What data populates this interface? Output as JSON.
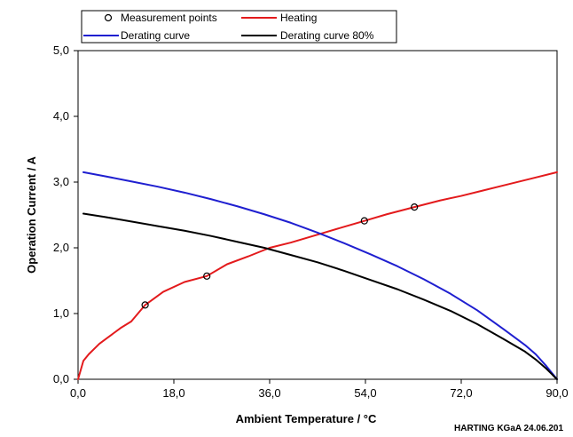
{
  "chart_data": {
    "type": "line",
    "title": "",
    "xlabel": "Ambient Temperature / °C",
    "ylabel": "Operation Current / A",
    "xlim": [
      0,
      90
    ],
    "ylim": [
      0,
      5
    ],
    "xticks": [
      0,
      18,
      36,
      54,
      72,
      90
    ],
    "xtick_labels": [
      "0,0",
      "18,0",
      "36,0",
      "54,0",
      "72,0",
      "90,0"
    ],
    "yticks": [
      0,
      1,
      2,
      3,
      4,
      5
    ],
    "ytick_labels": [
      "0,0",
      "1,0",
      "2,0",
      "3,0",
      "4,0",
      "5,0"
    ],
    "grid": false,
    "legend_position": "top",
    "legend": [
      {
        "label": "Measurement points",
        "marker": "circle",
        "color": "#000000"
      },
      {
        "label": "Heating",
        "marker": "line",
        "color": "#e31a1c"
      },
      {
        "label": "Derating curve",
        "marker": "line",
        "color": "#1f1fd0"
      },
      {
        "label": "Derating curve 80%",
        "marker": "line",
        "color": "#000000"
      }
    ],
    "series": [
      {
        "name": "Heating",
        "color": "#e31a1c",
        "x": [
          0,
          1,
          2,
          4,
          6,
          8,
          10,
          12.6,
          16,
          20,
          24.2,
          28,
          32,
          36,
          40,
          45,
          50,
          53.8,
          58,
          63.2,
          68,
          72,
          76,
          80,
          85,
          90
        ],
        "y": [
          0,
          0.28,
          0.38,
          0.54,
          0.66,
          0.78,
          0.88,
          1.13,
          1.33,
          1.48,
          1.57,
          1.75,
          1.87,
          2.0,
          2.08,
          2.2,
          2.32,
          2.41,
          2.51,
          2.62,
          2.72,
          2.79,
          2.87,
          2.95,
          3.05,
          3.15
        ]
      },
      {
        "name": "Derating curve",
        "color": "#1f1fd0",
        "x": [
          1,
          5,
          10,
          15,
          20,
          25,
          30,
          35,
          40,
          45,
          50,
          55,
          60,
          65,
          70,
          75,
          80,
          84,
          86,
          88,
          89,
          89.6,
          90
        ],
        "y": [
          3.15,
          3.09,
          3.01,
          2.93,
          2.84,
          2.74,
          2.63,
          2.51,
          2.38,
          2.23,
          2.07,
          1.9,
          1.72,
          1.52,
          1.3,
          1.05,
          0.76,
          0.52,
          0.38,
          0.2,
          0.1,
          0.04,
          0
        ]
      },
      {
        "name": "Derating curve 80%",
        "color": "#000000",
        "x": [
          1,
          5,
          10,
          15,
          20,
          25,
          30,
          35,
          40,
          45,
          50,
          55,
          60,
          65,
          70,
          75,
          80,
          84,
          86,
          88,
          89,
          89.6,
          90
        ],
        "y": [
          2.52,
          2.47,
          2.4,
          2.33,
          2.26,
          2.18,
          2.09,
          2.0,
          1.89,
          1.78,
          1.65,
          1.51,
          1.37,
          1.21,
          1.04,
          0.84,
          0.61,
          0.42,
          0.3,
          0.16,
          0.08,
          0.03,
          0
        ]
      },
      {
        "name": "Measurement points",
        "marker": "circle",
        "color": "#000000",
        "x": [
          12.6,
          24.2,
          53.8,
          63.2
        ],
        "y": [
          1.13,
          1.57,
          2.41,
          2.62
        ]
      }
    ],
    "footer": "HARTING KGaA 24.06.201"
  }
}
